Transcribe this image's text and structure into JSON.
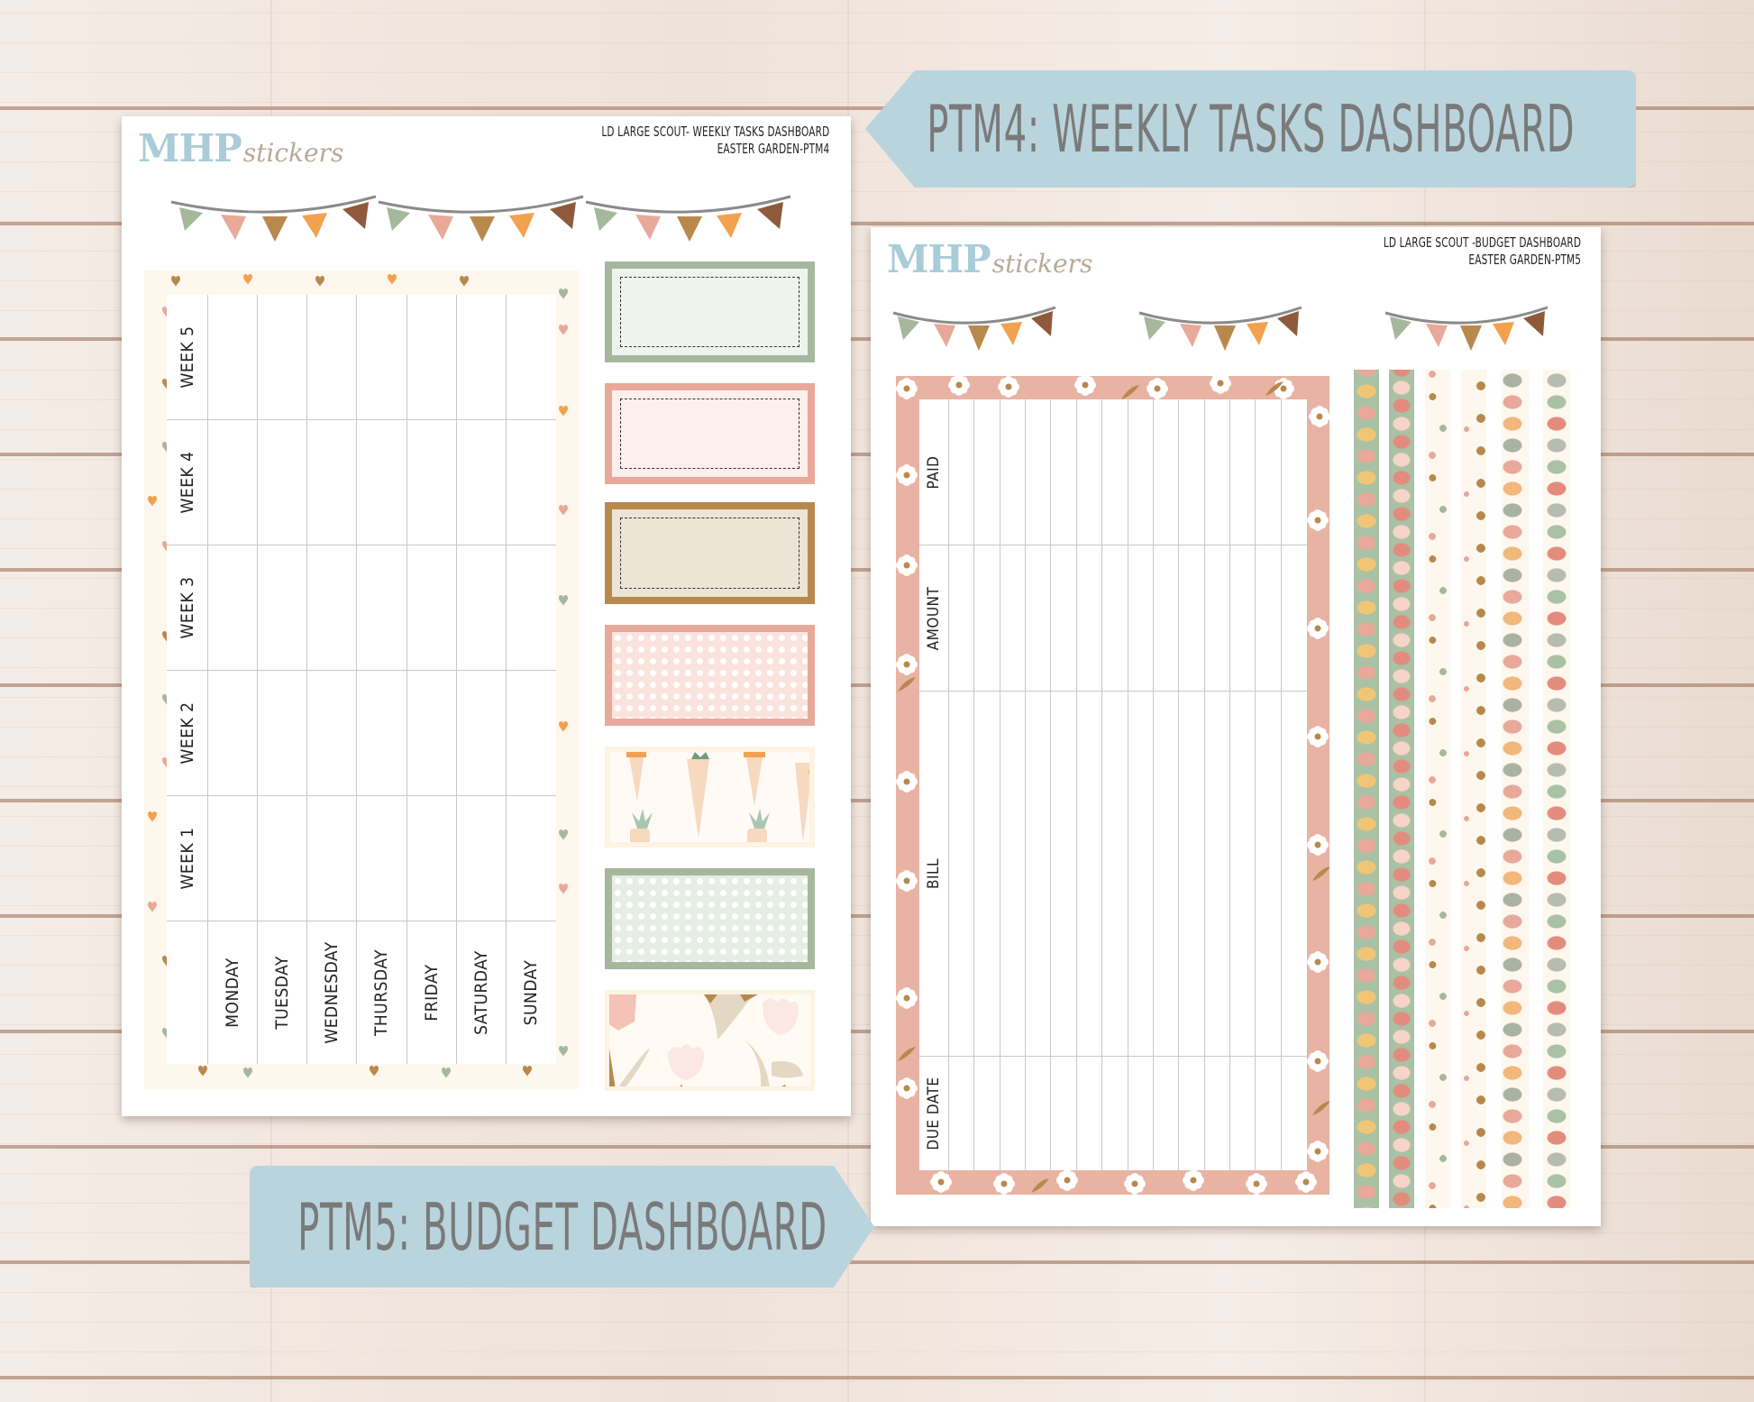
{
  "colors": {
    "sage": "#a6b89c",
    "blush": "#e8a99a",
    "ochre": "#b8894d",
    "orange": "#f2a24e",
    "brown": "#8f5a3c",
    "tag_blue": "#b9d4dc",
    "tag_text": "#7a7a7a",
    "logo_blue": "#a9ccd8",
    "floral_pink": "#e8b3a3",
    "cream": "#fdf7ee"
  },
  "banners": {
    "top": {
      "label": "PTM4: WEEKLY TASKS DASHBOARD"
    },
    "bottom": {
      "label": "PTM5: BUDGET DASHBOARD"
    }
  },
  "sheet_weekly": {
    "logo": {
      "brand_bold": "MHP",
      "brand_script": "stickers"
    },
    "title_line1": "LD LARGE SCOUT- WEEKLY TASKS DASHBOARD",
    "title_line2": "EASTER GARDEN-PTM4",
    "weeks": [
      "WEEK 5",
      "WEEK 4",
      "WEEK 3",
      "WEEK 2",
      "WEEK 1"
    ],
    "days": [
      "MONDAY",
      "TUESDAY",
      "WEDNESDAY",
      "THURSDAY",
      "FRIDAY",
      "SATURDAY",
      "SUNDAY"
    ],
    "side_boxes": [
      {
        "style": "sage-dashed"
      },
      {
        "style": "blush-dashed"
      },
      {
        "style": "ochre-dashed"
      },
      {
        "style": "blush-polka"
      },
      {
        "style": "carrot-pattern"
      },
      {
        "style": "sage-polka"
      },
      {
        "style": "tulip-pattern"
      }
    ]
  },
  "sheet_budget": {
    "logo": {
      "brand_bold": "MHP",
      "brand_script": "stickers"
    },
    "title_line1": "LD LARGE SCOUT -BUDGET  DASHBOARD",
    "title_line2": "EASTER GARDEN-PTM5",
    "row_labels": [
      "PAID",
      "AMOUNT",
      "BILL",
      "DUE DATE"
    ],
    "data_columns": 14,
    "washi_strips": [
      {
        "style": "eggs-on-sage"
      },
      {
        "style": "eggs-on-sage-alt"
      },
      {
        "style": "hearts-cream"
      },
      {
        "style": "hearts-cream-alt"
      },
      {
        "style": "eggs-on-cream"
      },
      {
        "style": "eggs-on-cream-alt"
      }
    ]
  }
}
